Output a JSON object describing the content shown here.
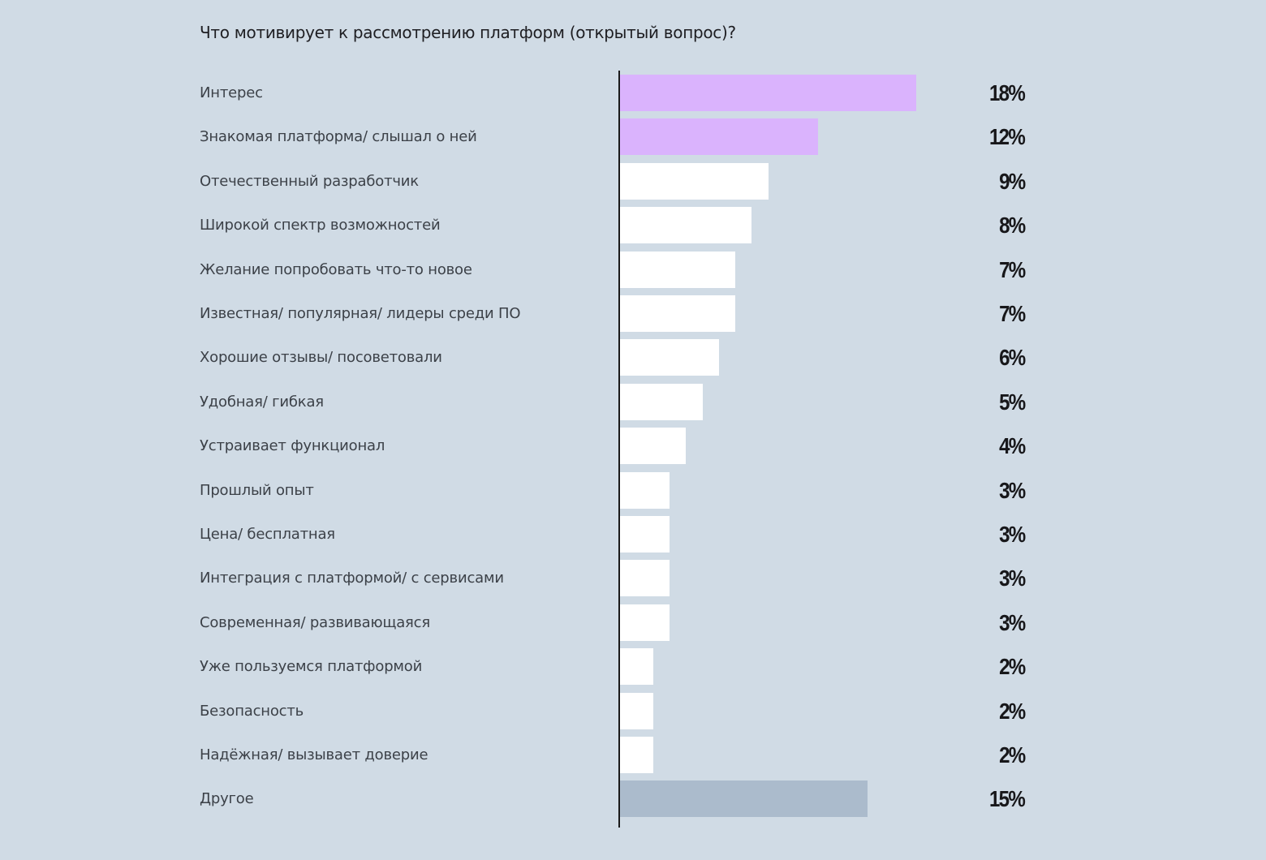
{
  "chart": {
    "title": "Что мотивирует к рассмотрению платформ (открытый вопрос)?"
  },
  "colors": {
    "background": "#d0dbe5",
    "highlight_bar": "#dab3fd",
    "default_bar": "#ffffff",
    "other_bar": "#abbbcc",
    "axis": "#1a1a1a",
    "label_text": "#3c4148",
    "value_text": "#17171a"
  },
  "rows": [
    {
      "label": "Интерес",
      "value": 18,
      "value_label": "18%",
      "style": "accent"
    },
    {
      "label": "Знакомая платформа/ слышал о ней",
      "value": 12,
      "value_label": "12%",
      "style": "accent"
    },
    {
      "label": "Отечественный разработчик",
      "value": 9,
      "value_label": "9%",
      "style": "default"
    },
    {
      "label": "Широкой спектр возможностей",
      "value": 8,
      "value_label": "8%",
      "style": "default"
    },
    {
      "label": "Желание попробовать что-то новое",
      "value": 7,
      "value_label": "7%",
      "style": "default"
    },
    {
      "label": "Известная/ популярная/ лидеры среди ПО",
      "value": 7,
      "value_label": "7%",
      "style": "default"
    },
    {
      "label": "Хорошие отзывы/ посоветовали",
      "value": 6,
      "value_label": "6%",
      "style": "default"
    },
    {
      "label": "Удобная/ гибкая",
      "value": 5,
      "value_label": "5%",
      "style": "default"
    },
    {
      "label": "Устраивает функционал",
      "value": 4,
      "value_label": "4%",
      "style": "default"
    },
    {
      "label": "Прошлый опыт",
      "value": 3,
      "value_label": "3%",
      "style": "default"
    },
    {
      "label": "Цена/ бесплатная",
      "value": 3,
      "value_label": "3%",
      "style": "default"
    },
    {
      "label": "Интеграция с платформой/ с сервисами",
      "value": 3,
      "value_label": "3%",
      "style": "default"
    },
    {
      "label": "Современная/ развивающаяся",
      "value": 3,
      "value_label": "3%",
      "style": "default"
    },
    {
      "label": "Уже пользуемся платформой",
      "value": 2,
      "value_label": "2%",
      "style": "default"
    },
    {
      "label": "Безопасность",
      "value": 2,
      "value_label": "2%",
      "style": "default"
    },
    {
      "label": "Надёжная/ вызывает доверие",
      "value": 2,
      "value_label": "2%",
      "style": "default"
    },
    {
      "label": "Другое",
      "value": 15,
      "value_label": "15%",
      "style": "other"
    }
  ],
  "chart_data": {
    "type": "bar",
    "orientation": "horizontal",
    "title": "Что мотивирует к рассмотрению платформ (открытый вопрос)?",
    "xlabel": "",
    "ylabel": "",
    "unit": "%",
    "grid": false,
    "legend": null,
    "categories": [
      "Интерес",
      "Знакомая платформа/ слышал о ней",
      "Отечественный разработчик",
      "Широкой спектр возможностей",
      "Желание попробовать что-то новое",
      "Известная/ популярная/ лидеры среди ПО",
      "Хорошие отзывы/ посоветовали",
      "Удобная/ гибкая",
      "Устраивает функционал",
      "Прошлый опыт",
      "Цена/ бесплатная",
      "Интеграция с платформой/ с сервисами",
      "Современная/ развивающаяся",
      "Уже пользуемся платформой",
      "Безопасность",
      "Надёжная/ вызывает доверие",
      "Другое"
    ],
    "values": [
      18,
      12,
      9,
      8,
      7,
      7,
      6,
      5,
      4,
      3,
      3,
      3,
      3,
      2,
      2,
      2,
      15
    ],
    "data_labels": [
      "18%",
      "12%",
      "9%",
      "8%",
      "7%",
      "7%",
      "6%",
      "5%",
      "4%",
      "3%",
      "3%",
      "3%",
      "3%",
      "2%",
      "2%",
      "2%",
      "15%"
    ],
    "bar_colors": [
      "#dab3fd",
      "#dab3fd",
      "#ffffff",
      "#ffffff",
      "#ffffff",
      "#ffffff",
      "#ffffff",
      "#ffffff",
      "#ffffff",
      "#ffffff",
      "#ffffff",
      "#ffffff",
      "#ffffff",
      "#ffffff",
      "#ffffff",
      "#ffffff",
      "#abbbcc"
    ],
    "xlim": [
      0,
      18
    ]
  }
}
